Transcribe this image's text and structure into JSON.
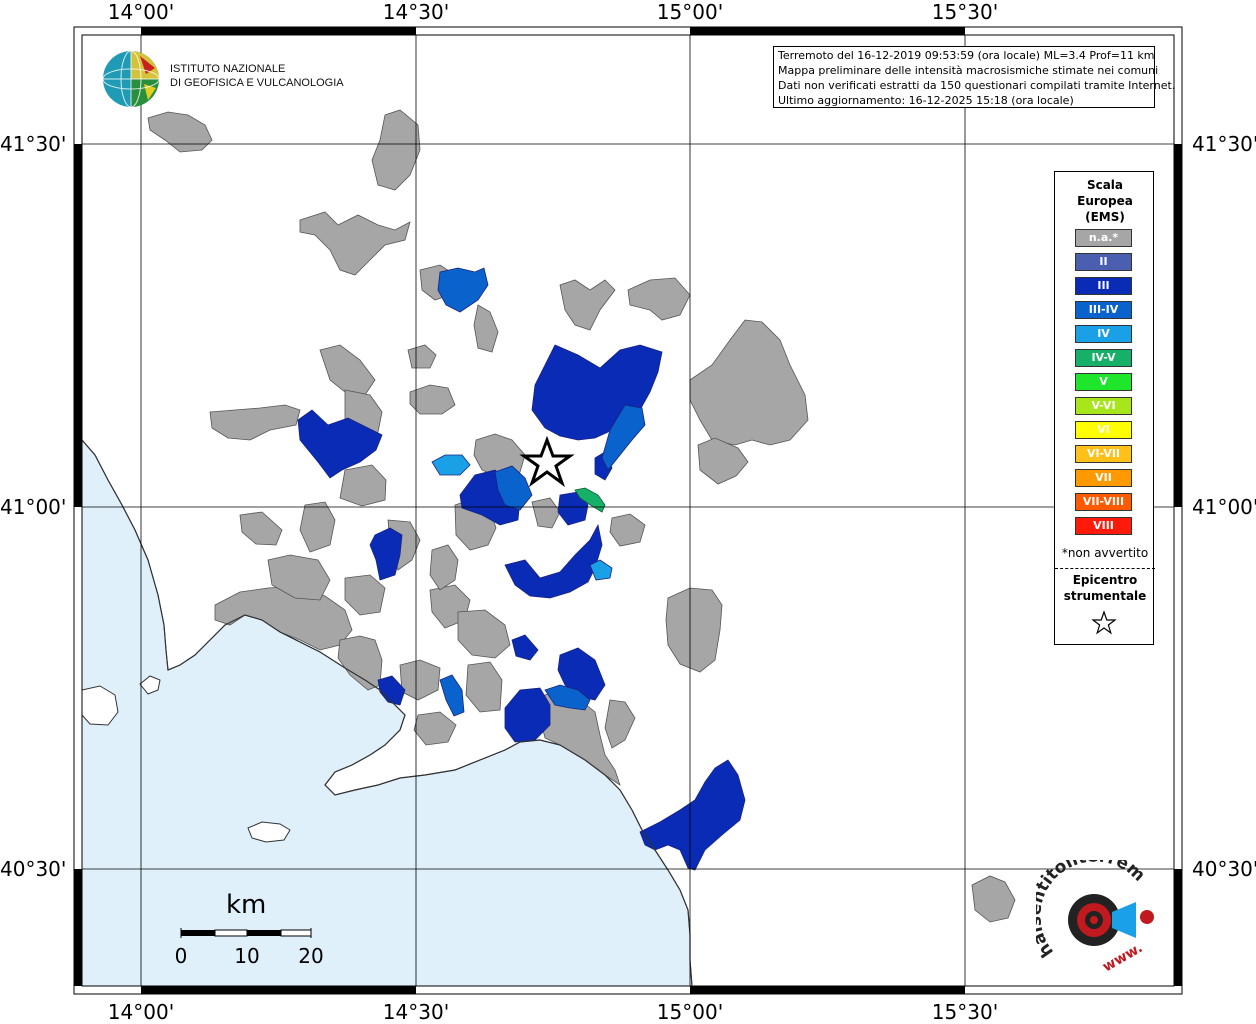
{
  "map": {
    "lon_labels": [
      "14°00'",
      "14°30'",
      "15°00'",
      "15°30'"
    ],
    "lat_labels": [
      "41°30'",
      "41°00'",
      "40°30'"
    ]
  },
  "info": {
    "line1": "Terremoto del 16-12-2019 09:53:59 (ora locale) ML=3.4 Prof=11 km",
    "line2": "Mappa preliminare delle intensità macrosismiche stimate nei comuni",
    "line3": "Dati non verificati estratti da 150 questionari compilati tramite Internet.",
    "line4": "Ultimo aggiornamento: 16-12-2025 15:18 (ora locale)"
  },
  "logo": {
    "line1": "ISTITUTO NAZIONALE",
    "line2": "DI GEOFISICA E VULCANOLOGIA"
  },
  "legend": {
    "title_line1": "Scala",
    "title_line2": "Europea",
    "title_line3": "(EMS)",
    "items": [
      {
        "label": "n.a.*",
        "color": "#a6a6a6"
      },
      {
        "label": "II",
        "color": "#4a5fb0"
      },
      {
        "label": "III",
        "color": "#0a2bb5"
      },
      {
        "label": "III-IV",
        "color": "#0a62cc"
      },
      {
        "label": "IV",
        "color": "#1aa0e6"
      },
      {
        "label": "IV-V",
        "color": "#16b068"
      },
      {
        "label": "V",
        "color": "#1ee62b"
      },
      {
        "label": "V-VI",
        "color": "#a6e61a"
      },
      {
        "label": "VI",
        "color": "#ffff00"
      },
      {
        "label": "VI-VII",
        "color": "#ffc01a"
      },
      {
        "label": "VII",
        "color": "#ff9900"
      },
      {
        "label": "VII-VIII",
        "color": "#ff5a00"
      },
      {
        "label": "VIII",
        "color": "#ff1a0a"
      }
    ],
    "na_note": "*non avvertito",
    "epicenter_line1": "Epicentro",
    "epicenter_line2": "strumentale"
  },
  "scalebar": {
    "unit": "km",
    "labels": [
      "0",
      "10",
      "20"
    ]
  },
  "hst": {
    "text": "haisentitoilterremoto.it",
    "www": "www."
  },
  "colors": {
    "sea": "#dff0fb",
    "land": "#ffffff",
    "na": "#a6a6a6",
    "III": "#0a2bb5",
    "III-IV": "#0a62cc",
    "IV": "#1aa0e6",
    "IV-V": "#16b068"
  }
}
